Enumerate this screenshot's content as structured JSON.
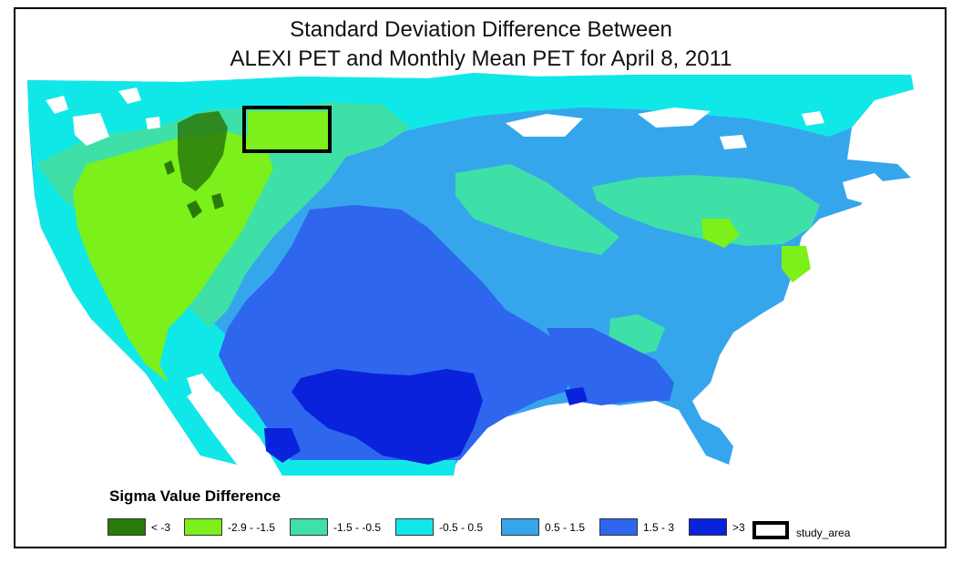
{
  "title": {
    "line1": "Standard Deviation Difference Between",
    "line2": "ALEXI PET and Monthly Mean PET for April 8, 2011"
  },
  "legend": {
    "title": "Sigma Value Difference",
    "classes": [
      {
        "label": "< -3",
        "color": "#2a7a0a"
      },
      {
        "label": "-2.9 - -1.5",
        "color": "#7cf01a"
      },
      {
        "label": "-1.5 - -0.5",
        "color": "#3ee0a8"
      },
      {
        "label": "-0.5 - 0.5",
        "color": "#10e8e8"
      },
      {
        "label": "0.5 - 1.5",
        "color": "#36a6ec"
      },
      {
        "label": "1.5 - 3",
        "color": "#2e66ee"
      },
      {
        "label": ">3",
        "color": "#0a22dc"
      }
    ],
    "study_area_label": "study_area"
  }
}
